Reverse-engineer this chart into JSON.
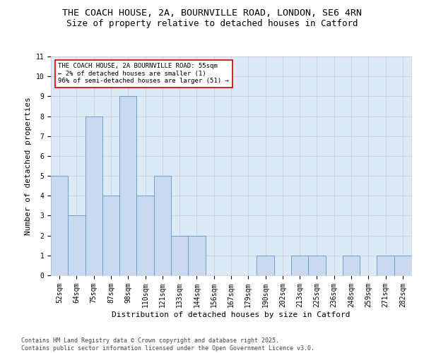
{
  "title1": "THE COACH HOUSE, 2A, BOURNVILLE ROAD, LONDON, SE6 4RN",
  "title2": "Size of property relative to detached houses in Catford",
  "xlabel": "Distribution of detached houses by size in Catford",
  "ylabel": "Number of detached properties",
  "bar_labels": [
    "52sqm",
    "64sqm",
    "75sqm",
    "87sqm",
    "98sqm",
    "110sqm",
    "121sqm",
    "133sqm",
    "144sqm",
    "156sqm",
    "167sqm",
    "179sqm",
    "190sqm",
    "202sqm",
    "213sqm",
    "225sqm",
    "236sqm",
    "248sqm",
    "259sqm",
    "271sqm",
    "282sqm"
  ],
  "bar_values": [
    5,
    3,
    8,
    4,
    9,
    4,
    5,
    2,
    2,
    0,
    0,
    0,
    1,
    0,
    1,
    1,
    0,
    1,
    0,
    1,
    1
  ],
  "bar_color": "#c9d9f0",
  "bar_edge_color": "#6b9ed2",
  "annotation_box_text": "THE COACH HOUSE, 2A BOURNVILLE ROAD: 55sqm\n← 2% of detached houses are smaller (1)\n96% of semi-detached houses are larger (51) →",
  "annotation_box_color": "#ffffff",
  "annotation_box_edge_color": "#cc0000",
  "ylim": [
    0,
    11
  ],
  "yticks": [
    0,
    1,
    2,
    3,
    4,
    5,
    6,
    7,
    8,
    9,
    10,
    11
  ],
  "grid_color": "#cccccc",
  "bg_color": "#dce9f8",
  "background_color": "#ffffff",
  "footer_text": "Contains HM Land Registry data © Crown copyright and database right 2025.\nContains public sector information licensed under the Open Government Licence v3.0.",
  "title_fontsize": 9.5,
  "title2_fontsize": 9,
  "axis_label_fontsize": 8,
  "tick_fontsize": 7,
  "annotation_fontsize": 6.5,
  "footer_fontsize": 6
}
